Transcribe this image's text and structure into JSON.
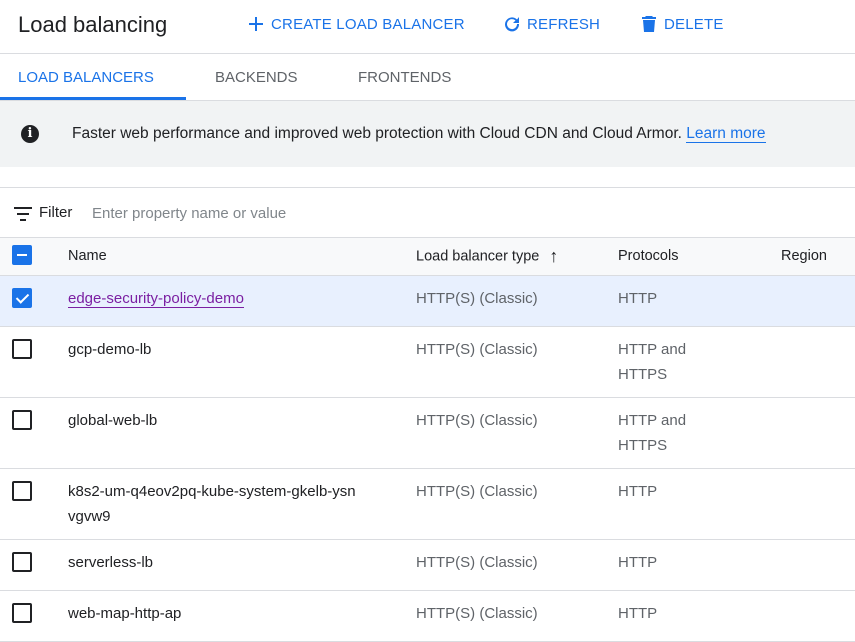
{
  "header": {
    "title": "Load balancing",
    "create_label": "CREATE LOAD BALANCER",
    "refresh_label": "REFRESH",
    "delete_label": "DELETE"
  },
  "tabs": [
    {
      "label": "LOAD BALANCERS",
      "active": true
    },
    {
      "label": "BACKENDS"
    },
    {
      "label": "FRONTENDS"
    }
  ],
  "banner": {
    "text": "Faster web performance and improved web protection with Cloud CDN and Cloud Armor.",
    "link": "Learn more"
  },
  "filter": {
    "label": "Filter",
    "placeholder": "Enter property name or value",
    "value": ""
  },
  "table": {
    "headers": {
      "name": "Name",
      "type": "Load balancer type",
      "protocols": "Protocols",
      "region": "Region"
    },
    "sort": "Load balancer type ascending",
    "rows": [
      {
        "name": "edge-security-policy-demo",
        "type": "HTTP(S) (Classic)",
        "protocols": "HTTP",
        "region": "",
        "checked": true
      },
      {
        "name": "gcp-demo-lb",
        "type": "HTTP(S) (Classic)",
        "protocols": "HTTP and HTTPS",
        "region": "",
        "checked": false
      },
      {
        "name": "global-web-lb",
        "type": "HTTP(S) (Classic)",
        "protocols": "HTTP and HTTPS",
        "region": "",
        "checked": false
      },
      {
        "name": "k8s2-um-q4eov2pq-kube-system-gkelb-ysnvgvw9",
        "type": "HTTP(S) (Classic)",
        "protocols": "HTTP",
        "region": "",
        "checked": false
      },
      {
        "name": "serverless-lb",
        "type": "HTTP(S) (Classic)",
        "protocols": "HTTP",
        "region": "",
        "checked": false
      },
      {
        "name": "web-map-http-ap",
        "type": "HTTP(S) (Classic)",
        "protocols": "HTTP",
        "region": "",
        "checked": false
      }
    ]
  },
  "colors": {
    "accent": "#1a73e8",
    "visited_link": "#7b1fa2",
    "selected_row": "#e8f0fe"
  }
}
